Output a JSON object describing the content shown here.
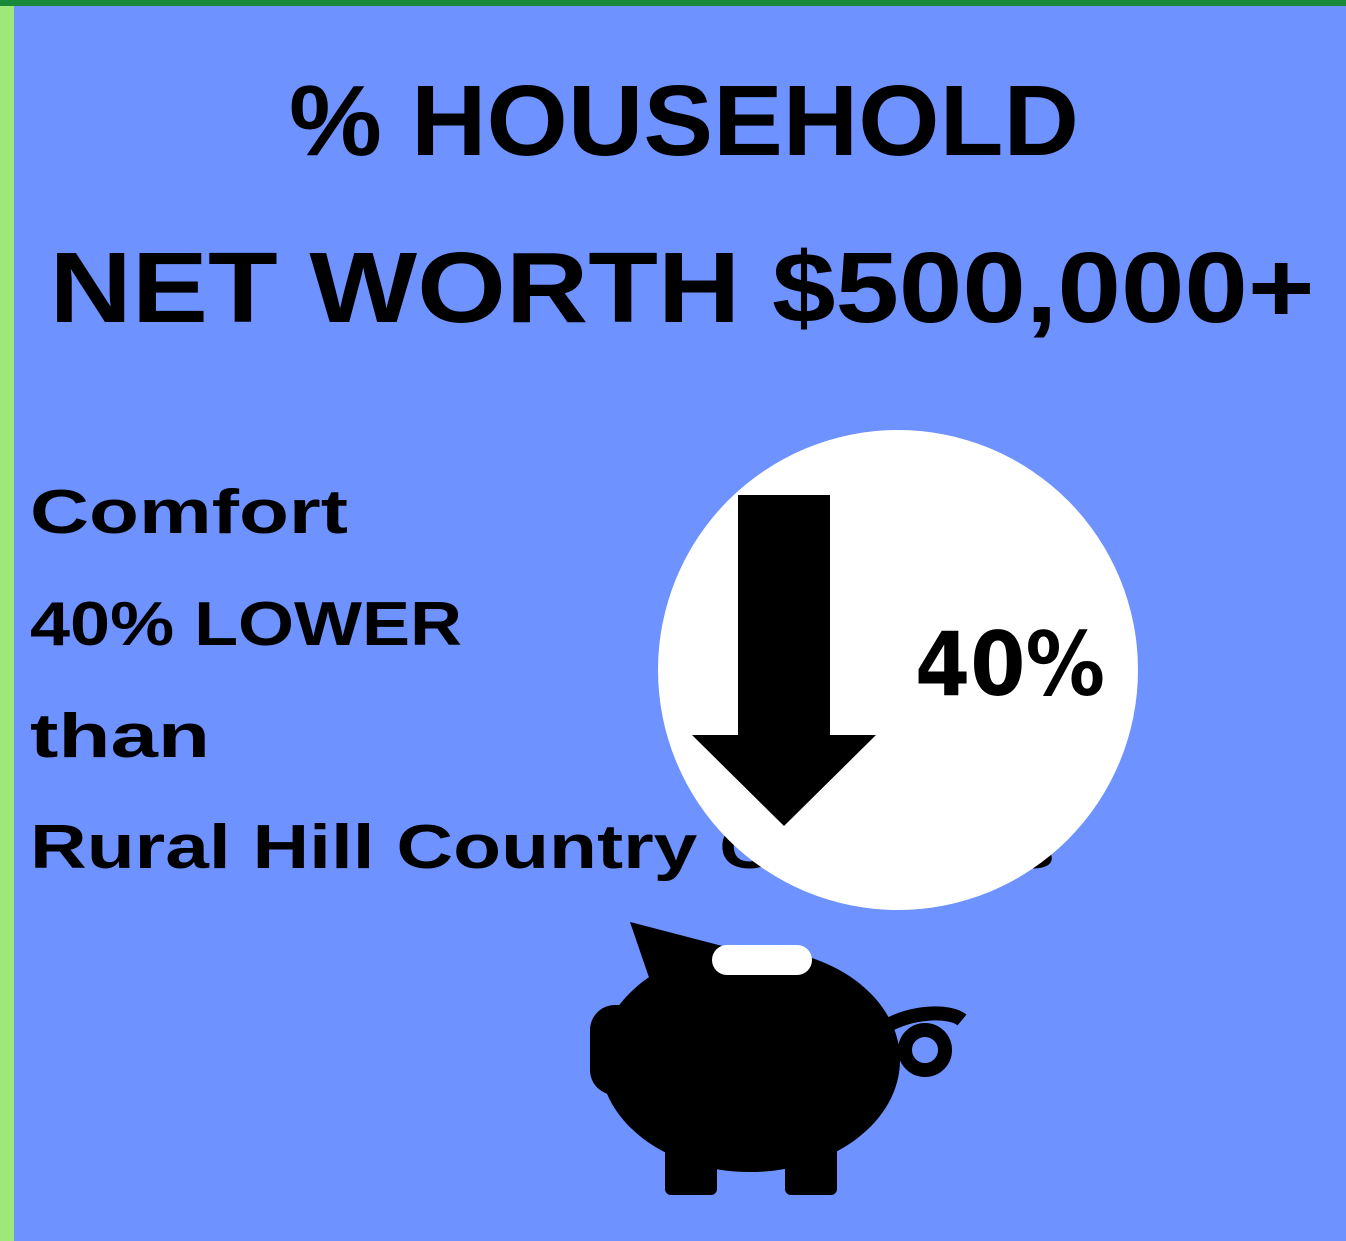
{
  "header": {
    "title_lines": [
      "% HOUSEHOLD",
      "NET WORTH $500,000+"
    ]
  },
  "body": {
    "lines": [
      "Comfort",
      "40% LOWER",
      "than",
      "Rural Hill Country Counties"
    ]
  },
  "badge": {
    "label": "40%"
  }
}
